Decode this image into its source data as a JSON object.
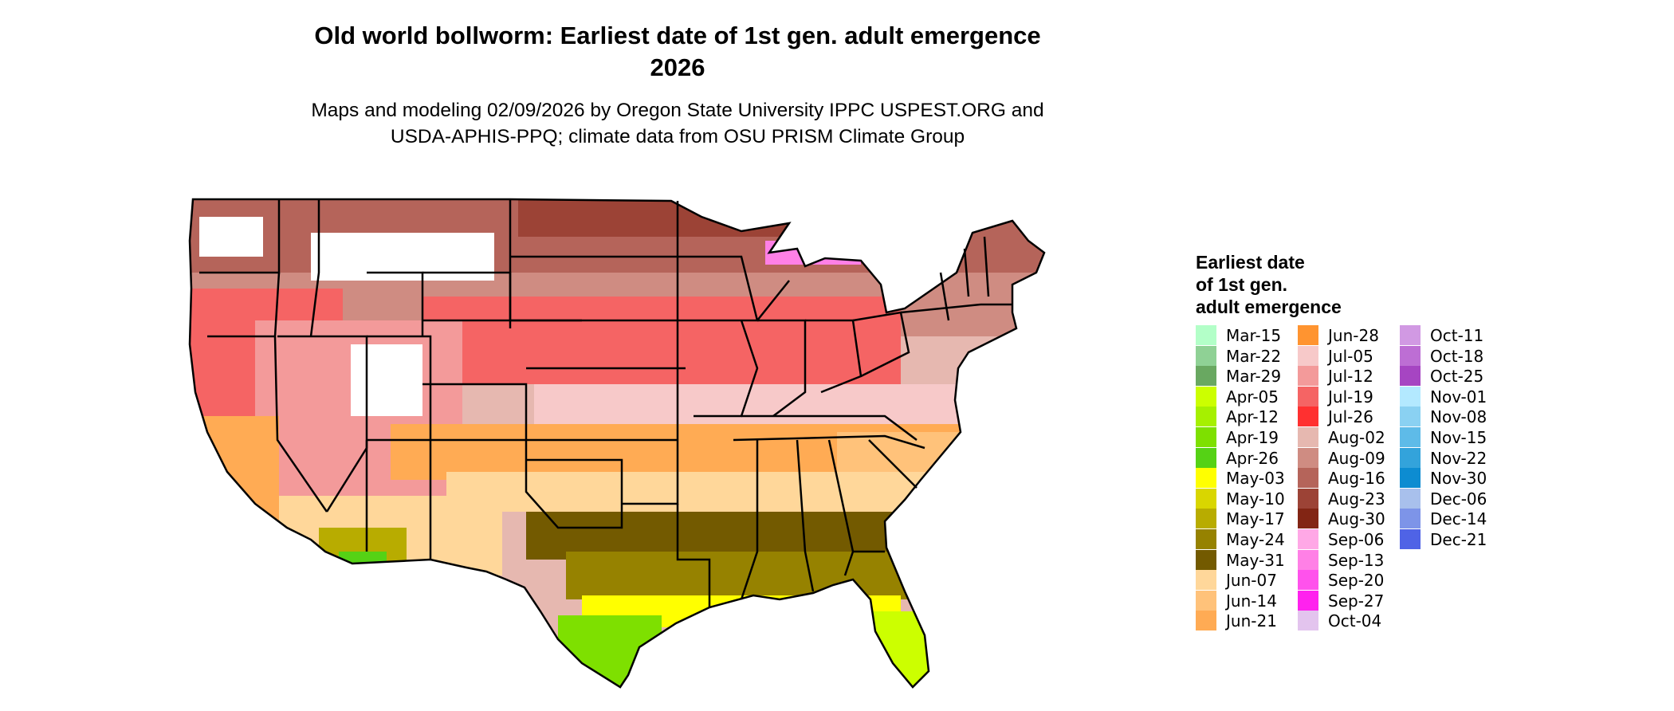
{
  "title": {
    "line1": "Old world bollworm: Earliest date of 1st gen. adult emergence",
    "line2": "2026"
  },
  "subtitle": {
    "line1": "Maps and modeling 02/09/2026 by Oregon State University IPPC USPEST.ORG and",
    "line2": "USDA-APHIS-PPQ; climate data from OSU PRISM Climate Group"
  },
  "legend": {
    "title_lines": [
      "Earliest date",
      "of 1st gen.",
      "adult emergence"
    ],
    "columns": [
      [
        {
          "label": "Mar-15",
          "color": "#b3ffc8"
        },
        {
          "label": "Mar-22",
          "color": "#8fd195"
        },
        {
          "label": "Mar-29",
          "color": "#69a861"
        },
        {
          "label": "Apr-05",
          "color": "#ccff00"
        },
        {
          "label": "Apr-12",
          "color": "#a6f000"
        },
        {
          "label": "Apr-19",
          "color": "#7ee000"
        },
        {
          "label": "Apr-26",
          "color": "#55d215"
        },
        {
          "label": "May-03",
          "color": "#ffff00"
        },
        {
          "label": "May-10",
          "color": "#d9d600"
        },
        {
          "label": "May-17",
          "color": "#b8ac00"
        },
        {
          "label": "May-24",
          "color": "#968200"
        },
        {
          "label": "May-31",
          "color": "#735a00"
        },
        {
          "label": "Jun-07",
          "color": "#ffd79a"
        },
        {
          "label": "Jun-14",
          "color": "#ffc27a"
        },
        {
          "label": "Jun-21",
          "color": "#ffab54"
        }
      ],
      [
        {
          "label": "Jun-28",
          "color": "#ff9430"
        },
        {
          "label": "Jul-05",
          "color": "#f7c9c9"
        },
        {
          "label": "Jul-12",
          "color": "#f39a9a"
        },
        {
          "label": "Jul-19",
          "color": "#f56464"
        },
        {
          "label": "Jul-26",
          "color": "#ff3030"
        },
        {
          "label": "Aug-02",
          "color": "#e6b8b0"
        },
        {
          "label": "Aug-09",
          "color": "#cf8c82"
        },
        {
          "label": "Aug-16",
          "color": "#b5645a"
        },
        {
          "label": "Aug-23",
          "color": "#9c4336"
        },
        {
          "label": "Aug-30",
          "color": "#822514"
        },
        {
          "label": "Sep-06",
          "color": "#ffa8e6"
        },
        {
          "label": "Sep-13",
          "color": "#ff80e6"
        },
        {
          "label": "Sep-20",
          "color": "#ff52ec"
        },
        {
          "label": "Sep-27",
          "color": "#ff22ee"
        },
        {
          "label": "Oct-04",
          "color": "#e3c4ee"
        }
      ],
      [
        {
          "label": "Oct-11",
          "color": "#d199e3"
        },
        {
          "label": "Oct-18",
          "color": "#bd6ed4"
        },
        {
          "label": "Oct-25",
          "color": "#a645c2"
        },
        {
          "label": "Nov-01",
          "color": "#b3e9ff"
        },
        {
          "label": "Nov-08",
          "color": "#8ad1f2"
        },
        {
          "label": "Nov-15",
          "color": "#5ebbe8"
        },
        {
          "label": "Nov-22",
          "color": "#33a3db"
        },
        {
          "label": "Nov-30",
          "color": "#0d8cd1"
        },
        {
          "label": "Dec-06",
          "color": "#a8c0ec"
        },
        {
          "label": "Dec-14",
          "color": "#7d94e8"
        },
        {
          "label": "Dec-21",
          "color": "#4f63e6"
        }
      ]
    ]
  },
  "map": {
    "region": "contiguous-united-states",
    "outline_color": "#000000",
    "no_emergence_color": "#ffffff"
  }
}
